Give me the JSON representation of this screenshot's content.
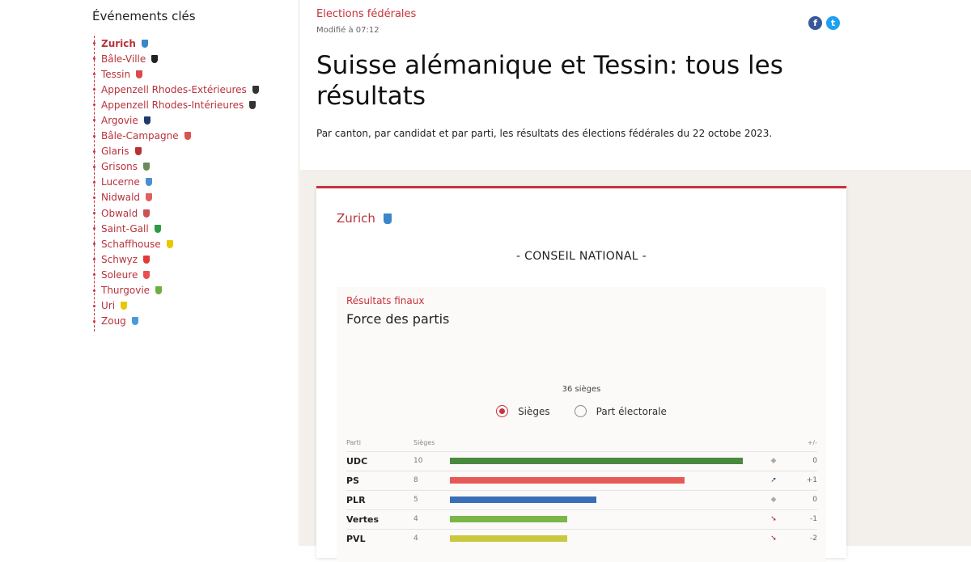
{
  "sidebar": {
    "title": "Événements clés",
    "items": [
      {
        "label": "Zurich",
        "crest": "#3a86c8",
        "active": true
      },
      {
        "label": "Bâle-Ville",
        "crest": "#222"
      },
      {
        "label": "Tessin",
        "crest": "#d94a4a"
      },
      {
        "label": "Appenzell Rhodes-Extérieures",
        "crest": "#333"
      },
      {
        "label": "Appenzell Rhodes-Intérieures",
        "crest": "#333"
      },
      {
        "label": "Argovie",
        "crest": "#1f3b6b"
      },
      {
        "label": "Bâle-Campagne",
        "crest": "#d9534f"
      },
      {
        "label": "Glaris",
        "crest": "#b83232"
      },
      {
        "label": "Grisons",
        "crest": "#6a8a5a"
      },
      {
        "label": "Lucerne",
        "crest": "#4a8fd0"
      },
      {
        "label": "Nidwald",
        "crest": "#e06060"
      },
      {
        "label": "Obwald",
        "crest": "#d05050"
      },
      {
        "label": "Saint-Gall",
        "crest": "#2e9a44"
      },
      {
        "label": "Schaffhouse",
        "crest": "#e8c800"
      },
      {
        "label": "Schwyz",
        "crest": "#e03a3a"
      },
      {
        "label": "Soleure",
        "crest": "#e85050"
      },
      {
        "label": "Thurgovie",
        "crest": "#6bb040"
      },
      {
        "label": "Uri",
        "crest": "#e8c800"
      },
      {
        "label": "Zoug",
        "crest": "#4a9ad8"
      }
    ]
  },
  "header": {
    "kicker": "Elections fédérales",
    "modified": "Modifié à 07:12",
    "title": "Suisse alémanique et Tessin: tous les résultats",
    "lead": "Par canton, par candidat et par parti, les résultats des élections fédérales  du 22 octobe 2023.",
    "social": [
      {
        "icon": "facebook-icon",
        "glyph": "f",
        "color": "#3b5998"
      },
      {
        "icon": "twitter-icon",
        "glyph": "t",
        "color": "#1da1f2"
      }
    ]
  },
  "card": {
    "canton": "Zurich",
    "council": "- CONSEIL NATIONAL -",
    "status": "Résultats finaux",
    "heading": "Force des partis",
    "seats_label": "36 sièges",
    "radios": [
      {
        "label": "Sièges",
        "selected": true
      },
      {
        "label": "Part électorale",
        "selected": false
      }
    ],
    "hemicycle_colors": [
      "#7ab648",
      "#7ab648",
      "#7ab648",
      "#7ab648",
      "#e55a57",
      "#e55a57",
      "#e55a57",
      "#e55a57",
      "#e55a57",
      "#e55a57",
      "#e55a57",
      "#e55a57",
      "#c9c83e",
      "#c9c83e",
      "#c9c83e",
      "#c9c83e",
      "#e0a030",
      "#d9872e",
      "#e0a030",
      "#d9872e",
      "#3a6fb8",
      "#3a6fb8",
      "#3a6fb8",
      "#3a6fb8",
      "#3a6fb8",
      "#4a8a3e",
      "#4a8a3e",
      "#4a8a3e",
      "#4a8a3e",
      "#4a8a3e",
      "#4a8a3e",
      "#4a8a3e",
      "#4a8a3e",
      "#4a8a3e",
      "#4a8a3e",
      "#8a5030"
    ],
    "table": {
      "headers": {
        "party": "Parti",
        "seats": "Sièges",
        "diff": "+/-"
      },
      "max_seats": 10,
      "rows": [
        {
          "party": "UDC",
          "seats": 10,
          "color": "#4a8a3e",
          "trend": "stable",
          "diff": "0"
        },
        {
          "party": "PS",
          "seats": 8,
          "color": "#e55a57",
          "trend": "up",
          "diff": "+1"
        },
        {
          "party": "PLR",
          "seats": 5,
          "color": "#3a6fb8",
          "trend": "stable",
          "diff": "0"
        },
        {
          "party": "Vertes",
          "seats": 4,
          "color": "#7ab648",
          "trend": "down",
          "diff": "-1"
        },
        {
          "party": "PVL",
          "seats": 4,
          "color": "#c9c83e",
          "trend": "down",
          "diff": "-2"
        }
      ]
    }
  }
}
